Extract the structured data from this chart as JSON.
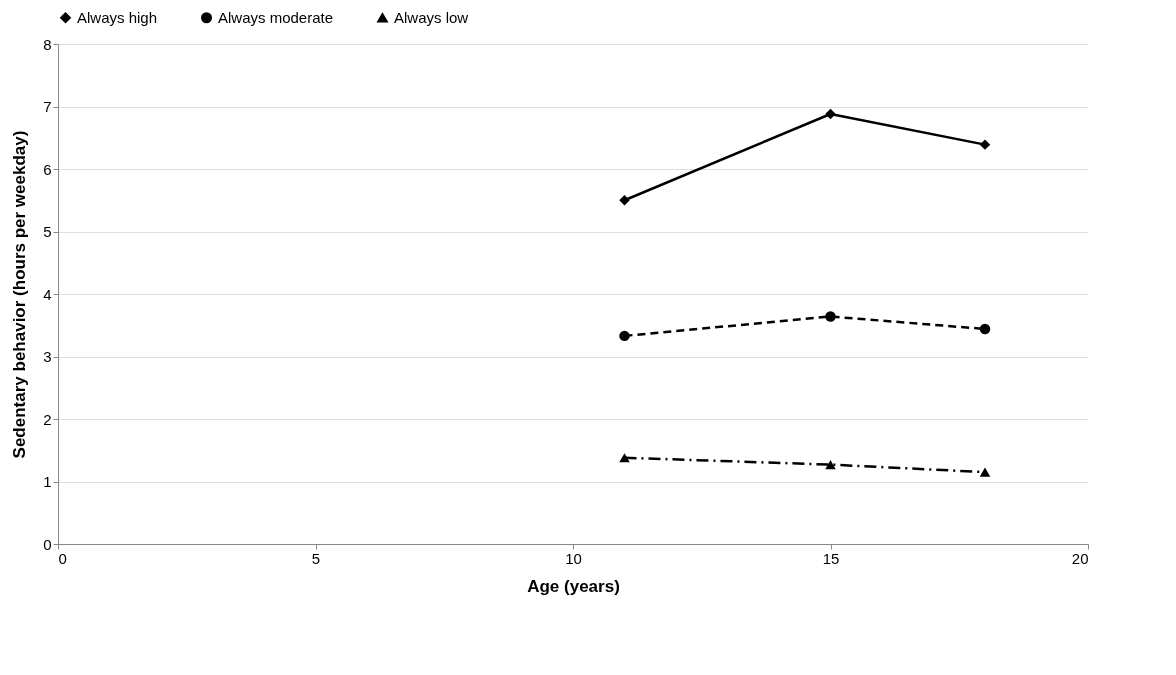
{
  "chart_data": {
    "type": "line",
    "xlabel": "Age (years)",
    "ylabel": "Sedentary behavior (hours per weekday)",
    "x": [
      11,
      15,
      18
    ],
    "series": [
      {
        "name": "Always high",
        "color": "#000000",
        "values": [
          5.5,
          6.88,
          6.39
        ],
        "marker": "diamond",
        "line_style": "solid"
      },
      {
        "name": "Always moderate",
        "color": "#000000",
        "values": [
          3.33,
          3.64,
          3.44
        ],
        "marker": "circle",
        "line_style": "dashed"
      },
      {
        "name": "Always low",
        "color": "#000000",
        "values": [
          1.38,
          1.27,
          1.15
        ],
        "marker": "triangle",
        "line_style": "dashdot"
      }
    ],
    "xlim": [
      0,
      20
    ],
    "xticks": [
      0,
      5,
      10,
      15,
      20
    ],
    "ylim": [
      0,
      8
    ],
    "yticks": [
      0,
      1,
      2,
      3,
      4,
      5,
      6,
      7,
      8
    ],
    "grid": "y",
    "legend": "top"
  }
}
